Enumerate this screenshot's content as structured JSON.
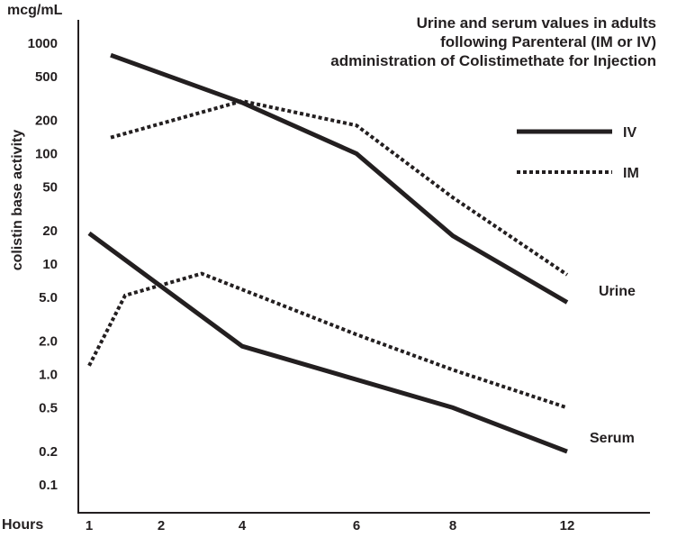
{
  "chart_data": {
    "type": "line",
    "title": [
      "Urine and serum values in adults",
      "following Parenteral (IM or IV)",
      "administration of Colistimethate for Injection"
    ],
    "unit_label": "mcg/mL",
    "ylabel": "colistin base activity",
    "xlabel": "Hours",
    "x_ticks": [
      1,
      2,
      4,
      6,
      8,
      12
    ],
    "y_scale": "log",
    "y_ticks": [
      "1000",
      "500",
      "200",
      "100",
      "50",
      "20",
      "10",
      "5.0",
      "2.0",
      "1.0",
      "0.5",
      "0.2",
      "0.1"
    ],
    "ylim": [
      0.1,
      1000
    ],
    "legend": [
      {
        "name": "IV",
        "style": "solid"
      },
      {
        "name": "IM",
        "style": "dotted"
      }
    ],
    "legend_placement": "top-right",
    "annotations": [
      "Urine",
      "Serum"
    ],
    "series": [
      {
        "group": "Urine",
        "route": "IV",
        "style": "solid",
        "points": [
          [
            1.3,
            780
          ],
          [
            4,
            290
          ],
          [
            6,
            100
          ],
          [
            8,
            18
          ],
          [
            12,
            4.5
          ]
        ]
      },
      {
        "group": "Urine",
        "route": "IM",
        "style": "dotted",
        "points": [
          [
            1.3,
            140
          ],
          [
            4,
            300
          ],
          [
            6,
            180
          ],
          [
            8,
            40
          ],
          [
            12,
            8
          ]
        ]
      },
      {
        "group": "Serum",
        "route": "IV",
        "style": "solid",
        "points": [
          [
            1,
            19
          ],
          [
            4,
            1.8
          ],
          [
            8,
            0.5
          ],
          [
            12,
            0.2
          ]
        ]
      },
      {
        "group": "Serum",
        "route": "IM",
        "style": "dotted",
        "points": [
          [
            1,
            1.2
          ],
          [
            1.5,
            5.2
          ],
          [
            3,
            8.2
          ],
          [
            6,
            2.3
          ],
          [
            8,
            1.1
          ],
          [
            12,
            0.5
          ]
        ]
      }
    ],
    "grid": false,
    "colors": {
      "ink": "#231f20",
      "background": "#ffffff"
    }
  }
}
